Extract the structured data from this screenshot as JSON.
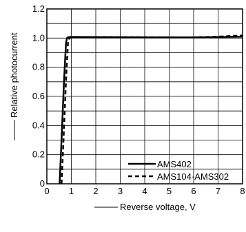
{
  "chart_data": {
    "type": "line",
    "xlabel": "Reverse voltage, V",
    "ylabel": "Relative photocurrent",
    "xlim": [
      0,
      8
    ],
    "ylim": [
      0,
      1.2
    ],
    "xticks": [
      "0",
      "1",
      "2",
      "3",
      "4",
      "5",
      "6",
      "7",
      "8"
    ],
    "yticks": [
      "0",
      "0.2",
      "0.4",
      "0.6",
      "0.8",
      "1.0",
      "1.2"
    ],
    "grid": true,
    "legend_position": "bottom-right",
    "series": [
      {
        "name": "AMS402",
        "style": "solid",
        "color": "#000000",
        "x": [
          0.52,
          0.6,
          0.7,
          0.78,
          0.82,
          0.86,
          0.9,
          1.0,
          2.0,
          4.0,
          6.0,
          7.0,
          8.0
        ],
        "y": [
          0.0,
          0.3,
          0.7,
          0.96,
          1.0,
          1.005,
          1.007,
          1.008,
          1.007,
          1.005,
          1.005,
          1.007,
          1.01
        ]
      },
      {
        "name": "AMS104·AMS302",
        "style": "dashed",
        "color": "#000000",
        "x": [
          0.6,
          0.68,
          0.78,
          0.86,
          0.92,
          1.0,
          2.0,
          4.0,
          6.0,
          7.0,
          8.0
        ],
        "y": [
          0.0,
          0.3,
          0.7,
          0.96,
          1.0,
          1.005,
          1.007,
          1.006,
          1.005,
          1.01,
          1.018
        ]
      }
    ]
  }
}
